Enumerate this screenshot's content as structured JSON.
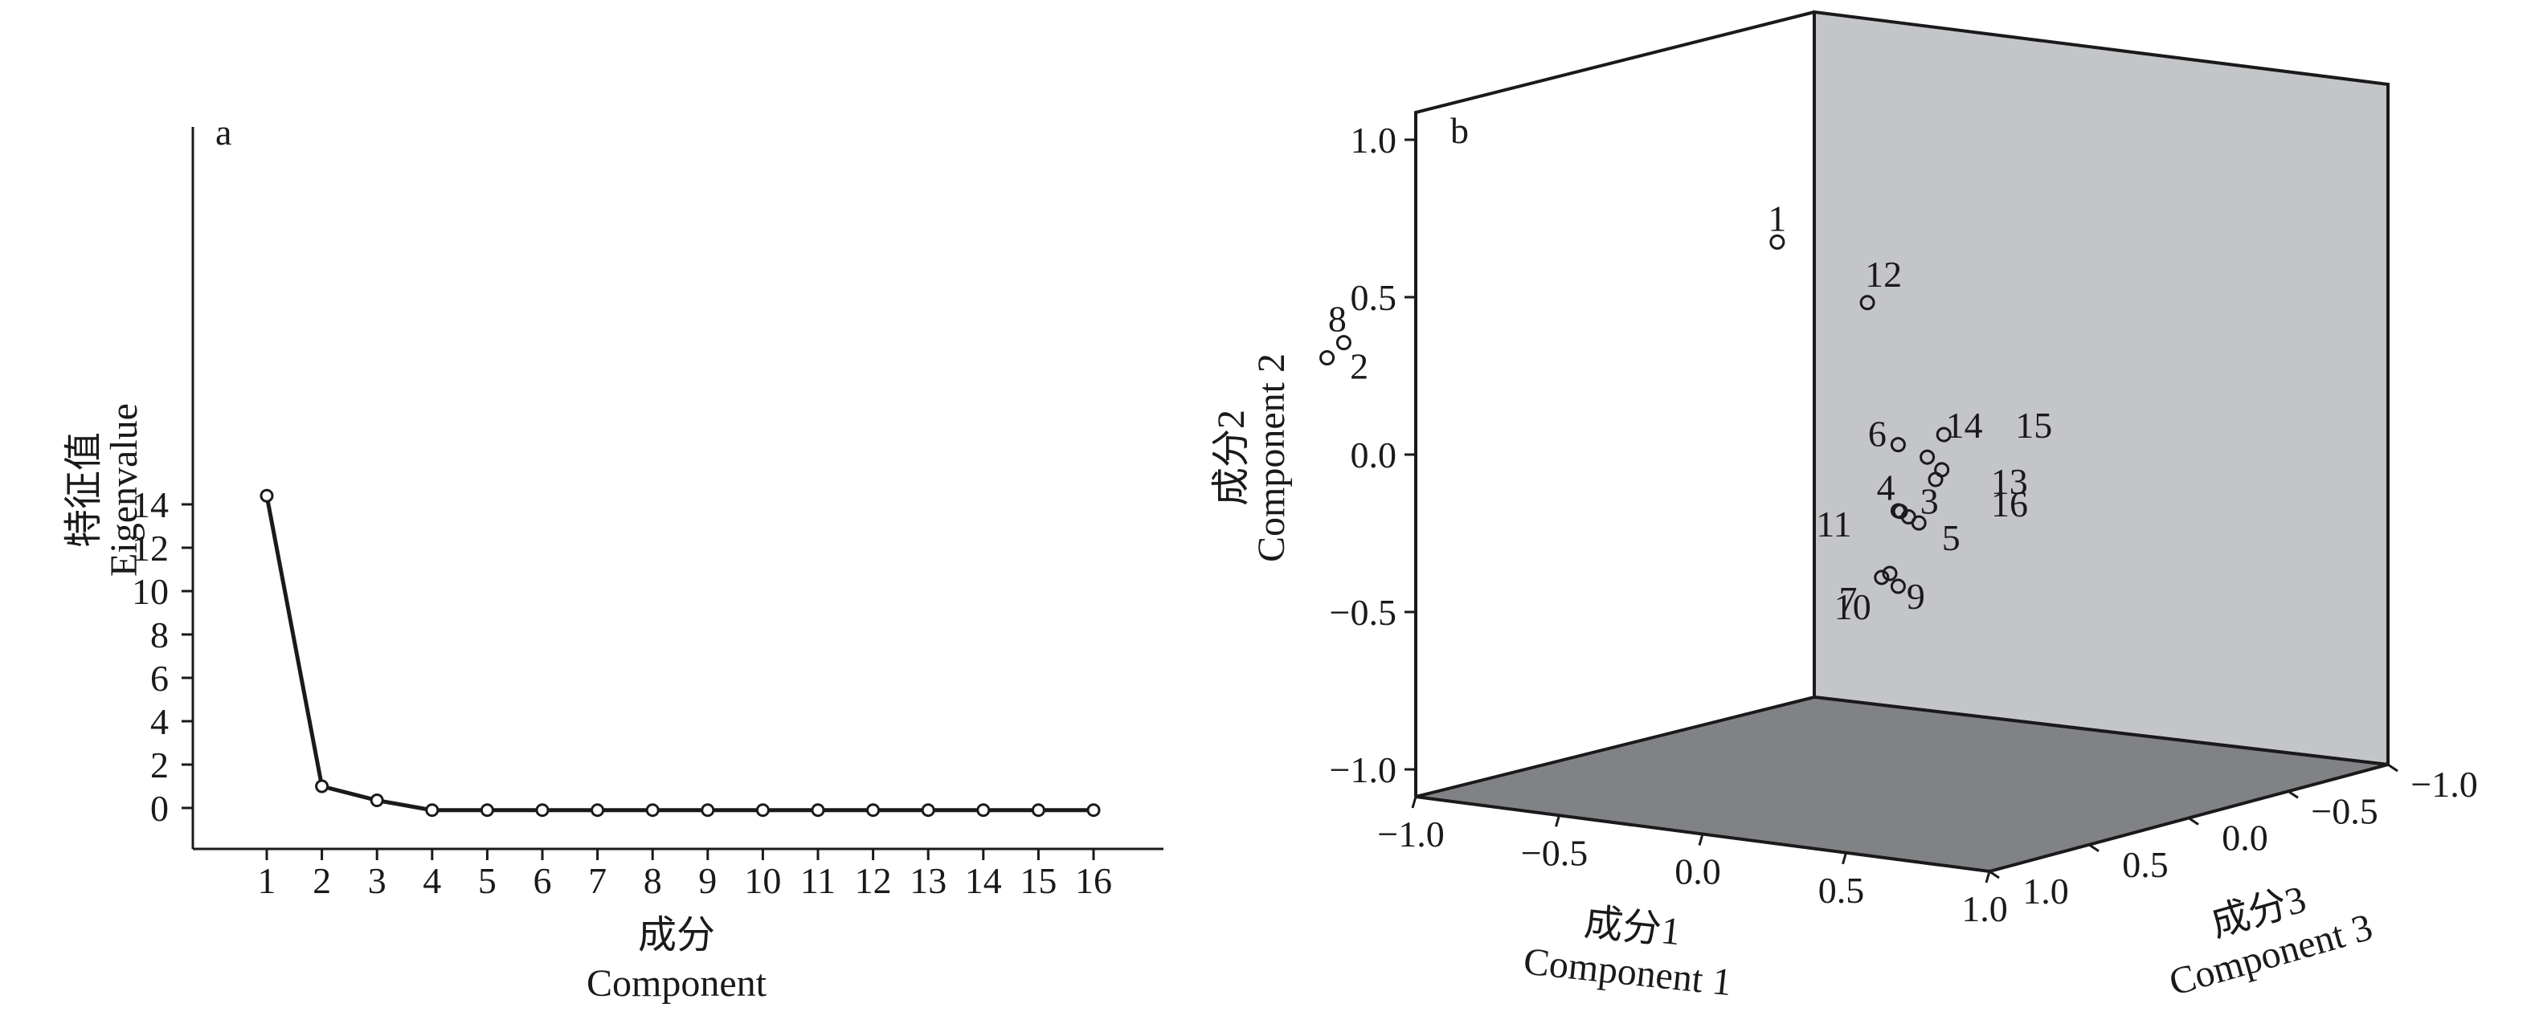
{
  "chart_data": [
    {
      "type": "line",
      "panel_label": "a",
      "ylabel_cn": "特征值",
      "ylabel_en": "Eigenvalue",
      "xlabel_cn": "成分",
      "xlabel_en": "Component",
      "x": [
        1,
        2,
        3,
        4,
        5,
        6,
        7,
        8,
        9,
        10,
        11,
        12,
        13,
        14,
        15,
        16
      ],
      "values": [
        14.4,
        1.0,
        0.35,
        -0.1,
        -0.1,
        -0.1,
        -0.1,
        -0.1,
        -0.1,
        -0.1,
        -0.1,
        -0.1,
        -0.1,
        -0.1,
        -0.1,
        -0.1
      ],
      "xticks": [
        "1",
        "2",
        "3",
        "4",
        "5",
        "6",
        "7",
        "8",
        "9",
        "10",
        "11",
        "12",
        "13",
        "14",
        "15",
        "16"
      ],
      "yticks": [
        "0",
        "2",
        "4",
        "6",
        "8",
        "10",
        "12",
        "14"
      ],
      "ylim": [
        -0.8,
        15.5
      ]
    },
    {
      "type": "scatter",
      "panel_label": "b",
      "ylabel_cn": "成分2",
      "ylabel_en": "Component 2",
      "xlabel_cn": "成分1",
      "xlabel_en": "Component 1",
      "zlabel_cn": "成分3",
      "zlabel_en": "Component 3",
      "yticks": [
        "−1.0",
        "−0.5",
        "0.0",
        "0.5",
        "1.0"
      ],
      "xticks": [
        "−1.0",
        "−0.5",
        "0.0",
        "0.5",
        "1.0"
      ],
      "zticks": [
        "1.0",
        "0.5",
        "0.0",
        "−0.5",
        "−1.0"
      ],
      "points": [
        {
          "label": "1",
          "c1": 0.22,
          "c2": 0.65,
          "c3": -0.85
        },
        {
          "label": "2",
          "c1": -0.92,
          "c2": 0.21,
          "c3": -0.98
        },
        {
          "label": "3",
          "c1": 0.64,
          "c2": -0.17,
          "c3": -0.63
        },
        {
          "label": "4",
          "c1": 0.63,
          "c2": -0.15,
          "c3": -0.61
        },
        {
          "label": "5",
          "c1": 0.66,
          "c2": -0.19,
          "c3": -0.64
        },
        {
          "label": "6",
          "c1": 0.62,
          "c2": 0.06,
          "c3": -0.62
        },
        {
          "label": "7",
          "c1": 0.6,
          "c2": -0.35,
          "c3": -0.62
        },
        {
          "label": "8",
          "c1": -0.88,
          "c2": 0.26,
          "c3": -0.98
        },
        {
          "label": "9",
          "c1": 0.62,
          "c2": -0.39,
          "c3": -0.62
        },
        {
          "label": "10",
          "c1": 0.59,
          "c2": -0.36,
          "c3": -0.6
        },
        {
          "label": "11",
          "c1": 0.62,
          "c2": -0.15,
          "c3": -0.62
        },
        {
          "label": "12",
          "c1": 0.58,
          "c2": 0.52,
          "c3": -0.55
        },
        {
          "label": "13",
          "c1": 0.71,
          "c2": -0.02,
          "c3": -0.65
        },
        {
          "label": "14",
          "c1": 0.68,
          "c2": 0.02,
          "c3": -0.64
        },
        {
          "label": "15",
          "c1": 0.71,
          "c2": 0.09,
          "c3": -0.66
        },
        {
          "label": "16",
          "c1": 0.7,
          "c2": -0.05,
          "c3": -0.64
        }
      ]
    }
  ]
}
